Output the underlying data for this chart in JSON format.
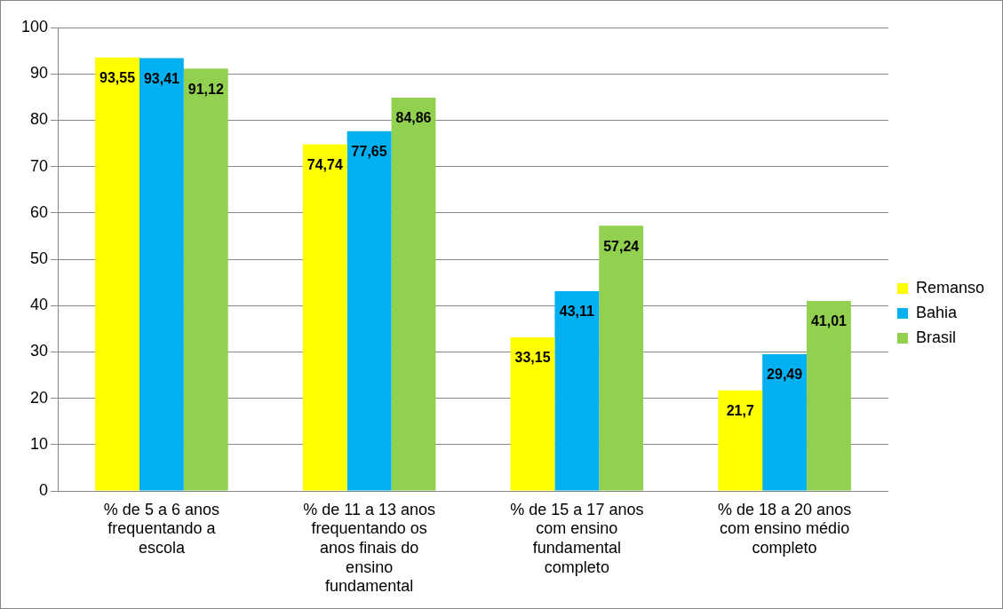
{
  "chart_data": {
    "type": "bar",
    "categories": [
      "% de 5 a 6 anos frequentando a escola",
      "% de 11 a 13 anos frequentando os anos finais do ensino fundamental",
      "% de 15 a 17 anos com ensino fundamental completo",
      "% de 18 a 20 anos com ensino médio completo"
    ],
    "series": [
      {
        "name": "Remanso",
        "color": "#ffff00",
        "values": [
          93.55,
          74.74,
          33.15,
          21.7
        ],
        "value_labels": [
          "93,55",
          "74,74",
          "33,15",
          "21,7"
        ]
      },
      {
        "name": "Bahia",
        "color": "#00b0f0",
        "values": [
          93.41,
          77.65,
          43.11,
          29.49
        ],
        "value_labels": [
          "93,41",
          "77,65",
          "43,11",
          "29,49"
        ]
      },
      {
        "name": "Brasil",
        "color": "#92d050",
        "values": [
          91.12,
          84.86,
          57.24,
          41.01
        ],
        "value_labels": [
          "91,12",
          "84,86",
          "57,24",
          "41,01"
        ]
      }
    ],
    "ylim": [
      0,
      100
    ],
    "yticks": [
      0,
      10,
      20,
      30,
      40,
      50,
      60,
      70,
      80,
      90,
      100
    ],
    "grid": "y",
    "legend": "right"
  }
}
